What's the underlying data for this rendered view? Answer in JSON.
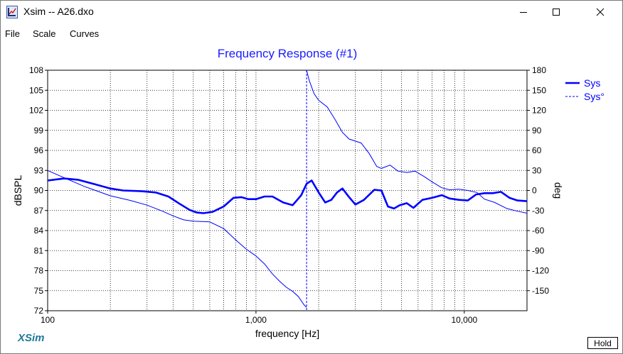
{
  "window": {
    "title": "Xsim -- A26.dxo"
  },
  "menu": {
    "items": [
      "File",
      "Scale",
      "Curves"
    ]
  },
  "brand": "XSim",
  "hold_label": "Hold",
  "colors": {
    "curve": "#0000ff",
    "title": "#1a1aff",
    "brand": "#1f7a99",
    "grid": "#000000",
    "axis_text": "#000000"
  },
  "chart_data": {
    "type": "line",
    "title": "Frequency Response (#1)",
    "xlabel": "frequency [Hz]",
    "ylabel": "dBSPL",
    "y2label": "deg",
    "x_scale": "log",
    "xlim": [
      100,
      20000
    ],
    "ylim": [
      72,
      108
    ],
    "y2lim": [
      -180,
      180
    ],
    "x_tick_labels": [
      {
        "value": 100,
        "label": "100"
      },
      {
        "value": 1000,
        "label": "1,000"
      },
      {
        "value": 10000,
        "label": "10,000"
      }
    ],
    "x_grid_values": [
      200,
      300,
      400,
      500,
      600,
      700,
      800,
      900,
      1000,
      2000,
      3000,
      4000,
      5000,
      6000,
      7000,
      8000,
      9000,
      10000
    ],
    "y_ticks": [
      {
        "value": 108,
        "label": "108"
      },
      {
        "value": 105,
        "label": "105"
      },
      {
        "value": 102,
        "label": "102"
      },
      {
        "value": 99,
        "label": "99"
      },
      {
        "value": 96,
        "label": "96"
      },
      {
        "value": 93,
        "label": "93"
      },
      {
        "value": 90,
        "label": "90"
      },
      {
        "value": 87,
        "label": "87"
      },
      {
        "value": 84,
        "label": "84"
      },
      {
        "value": 81,
        "label": "81"
      },
      {
        "value": 78,
        "label": "78"
      },
      {
        "value": 75,
        "label": "75"
      },
      {
        "value": 72,
        "label": "72"
      }
    ],
    "y2_ticks": [
      {
        "value": 180,
        "label": "180"
      },
      {
        "value": 150,
        "label": "150"
      },
      {
        "value": 120,
        "label": "120"
      },
      {
        "value": 90,
        "label": "90"
      },
      {
        "value": 60,
        "label": "60"
      },
      {
        "value": 30,
        "label": "30"
      },
      {
        "value": 0,
        "label": "0"
      },
      {
        "value": -30,
        "label": "-30"
      },
      {
        "value": -60,
        "label": "-60"
      },
      {
        "value": -90,
        "label": "-90"
      },
      {
        "value": -120,
        "label": "-120"
      },
      {
        "value": -150,
        "label": "-150"
      }
    ],
    "grid": true,
    "legend_position": "top-right",
    "series": [
      {
        "name": "Sys",
        "axis": "left",
        "style": "solid-thick",
        "x": [
          100,
          120,
          140,
          170,
          200,
          230,
          280,
          330,
          380,
          430,
          480,
          520,
          560,
          620,
          700,
          780,
          850,
          920,
          1000,
          1100,
          1200,
          1350,
          1500,
          1650,
          1750,
          1850,
          2000,
          2150,
          2300,
          2450,
          2600,
          2800,
          3000,
          3300,
          3700,
          4000,
          4300,
          4600,
          4900,
          5300,
          5700,
          6300,
          7000,
          7800,
          8500,
          9400,
          10400,
          11400,
          12500,
          13700,
          15000,
          16500,
          18000,
          20000
        ],
        "y": [
          91.5,
          91.8,
          91.6,
          90.9,
          90.3,
          90.0,
          89.9,
          89.7,
          89.1,
          88.0,
          87.1,
          86.7,
          86.6,
          86.8,
          87.6,
          88.9,
          89.0,
          88.7,
          88.7,
          89.1,
          89.1,
          88.2,
          87.8,
          89.3,
          91.0,
          91.5,
          89.7,
          88.2,
          88.6,
          89.7,
          90.3,
          89.0,
          87.9,
          88.6,
          90.1,
          90.0,
          87.6,
          87.3,
          87.8,
          88.1,
          87.4,
          88.6,
          88.9,
          89.3,
          88.8,
          88.6,
          88.5,
          89.4,
          89.6,
          89.6,
          89.8,
          88.9,
          88.5,
          88.4
        ]
      },
      {
        "name": "Sys°",
        "axis": "right",
        "style": "thin",
        "x": [
          100,
          120,
          150,
          200,
          250,
          300,
          350,
          400,
          450,
          500,
          600,
          700,
          800,
          900,
          1000,
          1100,
          1200,
          1300,
          1400,
          1500,
          1600,
          1700,
          1750,
          1750,
          1800,
          1900,
          2000,
          2200,
          2400,
          2600,
          2800,
          3200,
          3500,
          3800,
          4000,
          4400,
          4800,
          5300,
          5800,
          6400,
          7000,
          7800,
          8500,
          9400,
          10400,
          11500,
          12500,
          14000,
          16000,
          18000,
          20000
        ],
        "y": [
          30,
          19,
          6,
          -8,
          -15,
          -22,
          -30,
          -38,
          -44,
          -46,
          -47,
          -57,
          -74,
          -88,
          -98,
          -110,
          -125,
          -136,
          -145,
          -151,
          -159,
          -171,
          -175,
          180,
          165,
          145,
          135,
          125,
          106,
          87,
          77,
          71,
          55,
          36,
          33,
          38,
          29,
          27,
          29,
          21,
          13,
          4,
          1,
          2,
          0,
          -3,
          -13,
          -18,
          -27,
          -31,
          -34
        ]
      }
    ]
  }
}
